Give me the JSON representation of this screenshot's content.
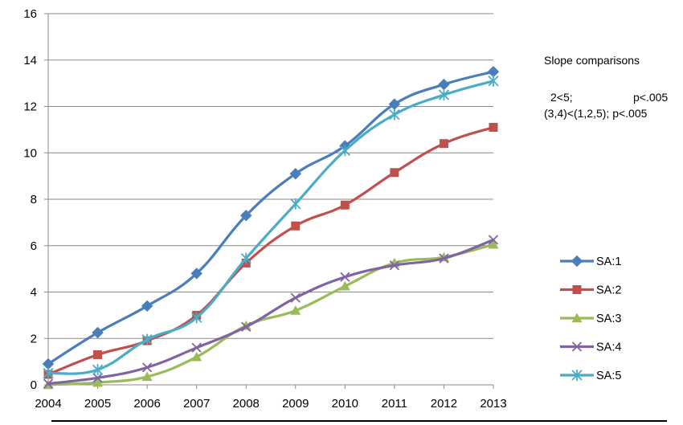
{
  "chart_data": {
    "type": "line",
    "x": [
      2004,
      2005,
      2006,
      2007,
      2008,
      2009,
      2010,
      2011,
      2012,
      2013
    ],
    "ylim": [
      0,
      16
    ],
    "yticks": [
      0,
      2,
      4,
      6,
      8,
      10,
      12,
      14,
      16
    ],
    "grid": "horizontal",
    "legend_position": "right",
    "series": [
      {
        "name": "SA:1",
        "color": "#4a7ebb",
        "marker": "diamond",
        "values": [
          0.9,
          2.25,
          3.4,
          4.8,
          7.3,
          9.1,
          10.3,
          12.1,
          12.95,
          13.5
        ]
      },
      {
        "name": "SA:2",
        "color": "#c0504d",
        "marker": "square",
        "values": [
          0.45,
          1.3,
          1.9,
          3.0,
          5.25,
          6.85,
          7.75,
          9.15,
          10.4,
          11.1
        ]
      },
      {
        "name": "SA:3",
        "color": "#9bbb59",
        "marker": "triangle",
        "values": [
          0.0,
          0.1,
          0.35,
          1.2,
          2.55,
          3.2,
          4.25,
          5.25,
          5.5,
          6.05
        ]
      },
      {
        "name": "SA:4",
        "color": "#8064a2",
        "marker": "x",
        "values": [
          0.05,
          0.3,
          0.75,
          1.6,
          2.5,
          3.75,
          4.65,
          5.15,
          5.45,
          6.25
        ]
      },
      {
        "name": "SA:5",
        "color": "#4bacc6",
        "marker": "star",
        "values": [
          0.5,
          0.65,
          1.95,
          2.9,
          5.45,
          7.8,
          10.1,
          11.65,
          12.5,
          13.1
        ]
      }
    ],
    "annotations": {
      "heading": "Slope comparisons",
      "line1_left": "2<5;",
      "line1_right": "p<.005",
      "line2": "(3,4)<(1,2,5); p<.005"
    }
  }
}
